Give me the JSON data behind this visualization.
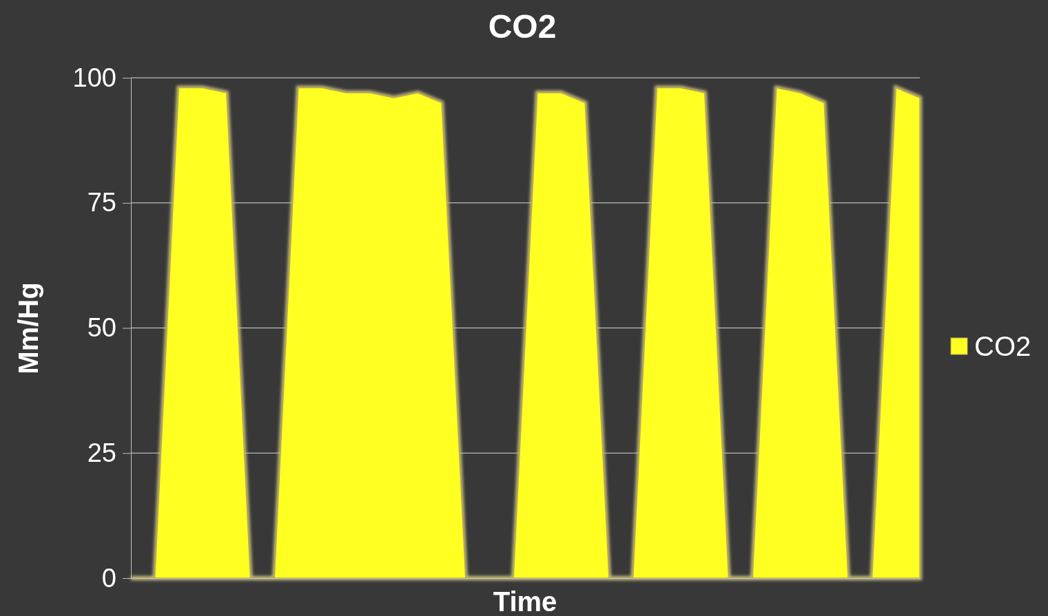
{
  "chart_data": {
    "type": "area",
    "title": "CO2",
    "xlabel": "Time",
    "ylabel": "Mm/Hg",
    "categories": [
      null,
      null,
      null,
      null,
      null,
      null,
      null,
      null,
      null,
      null,
      null,
      null,
      null,
      null,
      null,
      null,
      null,
      null,
      null,
      null,
      null,
      null,
      null,
      null,
      null,
      null,
      null,
      null,
      null,
      null,
      null,
      null,
      null,
      null
    ],
    "series": [
      {
        "name": "CO2",
        "color": "#ffff22",
        "values": [
          0,
          0,
          98,
          98,
          97,
          0,
          0,
          98,
          98,
          97,
          97,
          96,
          97,
          95,
          0,
          0,
          0,
          97,
          97,
          95,
          0,
          0,
          98,
          98,
          97,
          0,
          0,
          98,
          97,
          95,
          0,
          0,
          98,
          96
        ]
      }
    ],
    "ylim": [
      0,
      100
    ],
    "yticks": [
      0,
      25,
      50,
      75,
      100
    ],
    "grid": "y",
    "legend": "right"
  }
}
